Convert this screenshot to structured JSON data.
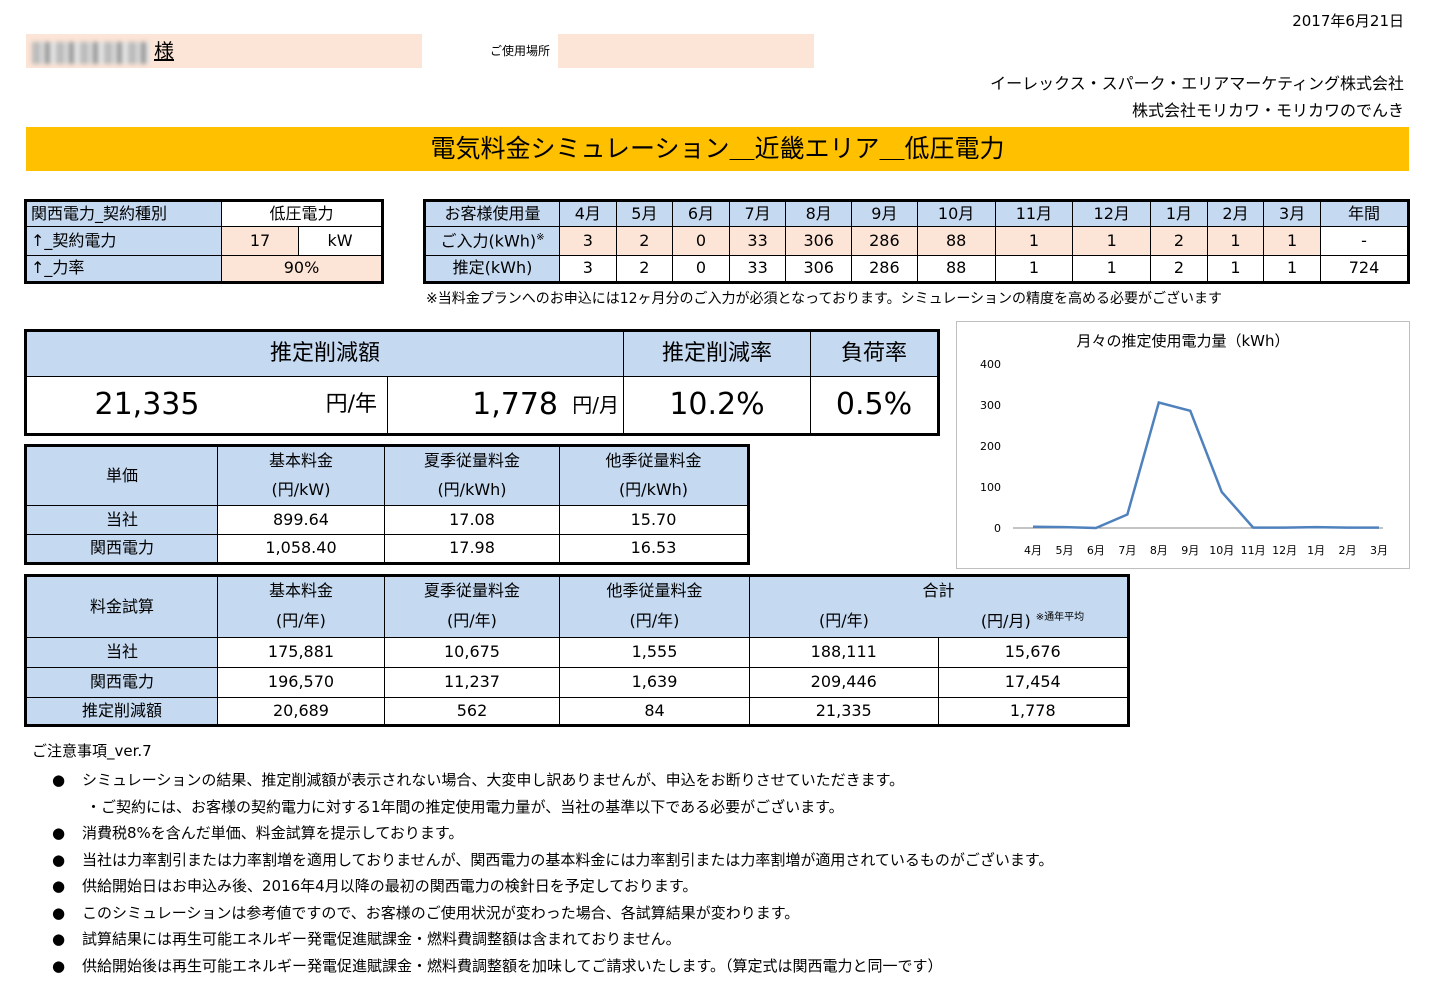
{
  "date": "2017年6月21日",
  "customer": {
    "suffix": "様",
    "place_label": "ご使用場所"
  },
  "company": {
    "line1": "イーレックス・スパーク・エリアマーケティング株式会社",
    "line2": "株式会社モリカワ・モリカワのでんき"
  },
  "title": "電気料金シミュレーション＿近畿エリア＿低圧電力",
  "contract": {
    "type_label": "関西電力_契約種別",
    "type_value": "低圧電力",
    "power_label": "↑_契約電力",
    "power_value": "17",
    "power_unit": "kW",
    "pf_label": "↑_力率",
    "pf_value": "90%"
  },
  "usage": {
    "header_label": "お客様使用量",
    "months": [
      "4月",
      "5月",
      "6月",
      "7月",
      "8月",
      "9月",
      "10月",
      "11月",
      "12月",
      "1月",
      "2月",
      "3月"
    ],
    "annual_label": "年間",
    "input_label": "ご入力(kWh)",
    "input_mark": "※",
    "input": [
      "3",
      "2",
      "0",
      "33",
      "306",
      "286",
      "88",
      "1",
      "1",
      "2",
      "1",
      "1"
    ],
    "input_annual": "-",
    "est_label": "推定(kWh)",
    "est": [
      "3",
      "2",
      "0",
      "33",
      "306",
      "286",
      "88",
      "1",
      "1",
      "2",
      "1",
      "1"
    ],
    "est_annual": "724",
    "note": "※当料金プランへのお申込には12ヶ月分のご入力が必須となっております。シミュレーションの精度を高める必要がございます"
  },
  "summary": {
    "reduction_label": "推定削減額",
    "rate_label": "推定削減率",
    "load_label": "負荷率",
    "yearly": "21,335",
    "yearly_unit": "円/年",
    "monthly": "1,778",
    "monthly_unit": "円/月",
    "rate": "10.2%",
    "load": "0.5%"
  },
  "unit_price": {
    "title": "単価",
    "cols": [
      {
        "name": "基本料金",
        "unit": "(円/kW)"
      },
      {
        "name": "夏季従量料金",
        "unit": "(円/kWh)"
      },
      {
        "name": "他季従量料金",
        "unit": "(円/kWh)"
      }
    ],
    "rows": [
      {
        "label": "当社",
        "values": [
          "899.64",
          "17.08",
          "15.70"
        ]
      },
      {
        "label": "関西電力",
        "values": [
          "1,058.40",
          "17.98",
          "16.53"
        ]
      }
    ]
  },
  "estimate": {
    "title": "料金試算",
    "cols": [
      {
        "name": "基本料金",
        "unit": "(円/年)"
      },
      {
        "name": "夏季従量料金",
        "unit": "(円/年)"
      },
      {
        "name": "他季従量料金",
        "unit": "(円/年)"
      }
    ],
    "total_label": "合計",
    "total_year_unit": "(円/年)",
    "total_month_unit": "(円/月)",
    "total_month_note": "※通年平均",
    "rows": [
      {
        "label": "当社",
        "values": [
          "175,881",
          "10,675",
          "1,555",
          "188,111",
          "15,676"
        ]
      },
      {
        "label": "関西電力",
        "values": [
          "196,570",
          "11,237",
          "1,639",
          "209,446",
          "17,454"
        ]
      },
      {
        "label": "推定削減額",
        "values": [
          "20,689",
          "562",
          "84",
          "21,335",
          "1,778"
        ]
      }
    ]
  },
  "chart_data": {
    "type": "line",
    "title": "月々の推定使用電力量（kWh）",
    "categories": [
      "4月",
      "5月",
      "6月",
      "7月",
      "8月",
      "9月",
      "10月",
      "11月",
      "12月",
      "1月",
      "2月",
      "3月"
    ],
    "values": [
      3,
      2,
      0,
      33,
      306,
      286,
      88,
      1,
      1,
      2,
      1,
      1
    ],
    "ylim": [
      0,
      400
    ],
    "yticks": [
      0,
      100,
      200,
      300,
      400
    ],
    "line_color": "#4f81bd",
    "grid": false
  },
  "notes": {
    "heading": "ご注意事項_ver.7",
    "bullet": "●",
    "items": [
      "シミュレーションの結果、推定削減額が表示されない場合、大変申し訳ありませんが、申込をお断りさせていただきます。",
      "消費税8%を含んだ単価、料金試算を提示しております。",
      "当社は力率割引または力率割増を適用しておりませんが、関西電力の基本料金には力率割引または力率割増が適用されているものがございます。",
      "供給開始日はお申込み後、2016年4月以降の最初の関西電力の検針日を予定しております。",
      "このシミュレーションは参考値ですので、お客様のご使用状況が変わった場合、各試算結果が変わります。",
      "試算結果には再生可能エネルギー発電促進賦課金・燃料費調整額は含まれておりません。",
      "供給開始後は再生可能エネルギー発電促進賦課金・燃料費調整額を加味してご請求いたします。（算定式は関西電力と同一です）"
    ],
    "sub": "・ご契約には、お客様の契約電力に対する1年間の推定使用電力量が、当社の基準以下である必要がございます。"
  }
}
